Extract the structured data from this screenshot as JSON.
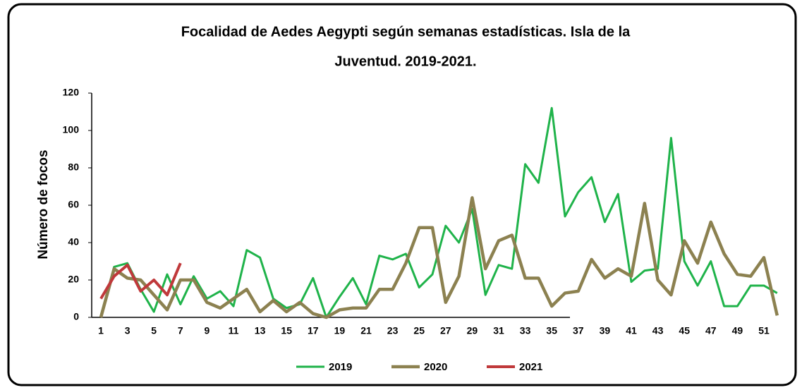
{
  "chart_data": {
    "type": "line",
    "title": [
      "Focalidad de Aedes Aegypti según semanas estadísticas. Isla de la",
      "Juventud. 2019-2021."
    ],
    "ylabel": "Número de focos",
    "categories": [
      "1",
      null,
      "3",
      null,
      "5",
      null,
      "7",
      null,
      "9",
      null,
      "11",
      null,
      "13",
      null,
      "15",
      null,
      "17",
      null,
      "19",
      null,
      "21",
      null,
      "23",
      null,
      "25",
      null,
      "27",
      null,
      "29",
      null,
      "31",
      null,
      "33",
      null,
      "35",
      null,
      "37",
      null,
      "39",
      null,
      "41",
      null,
      "43",
      null,
      "45",
      null,
      "47",
      null,
      "49",
      null,
      "51",
      null
    ],
    "ylim": [
      0,
      120
    ],
    "yticks": [
      0,
      20,
      40,
      60,
      80,
      100,
      120
    ],
    "grid": false,
    "legend": "bottom",
    "series": [
      {
        "name": "2019",
        "color": "#1fb34a",
        "width": 3,
        "values": [
          1,
          27,
          29,
          15,
          3,
          23,
          7,
          22,
          10,
          14,
          6,
          36,
          32,
          10,
          5,
          7,
          21,
          0,
          11,
          21,
          7,
          33,
          31,
          34,
          16,
          23,
          49,
          40,
          58,
          12,
          28,
          26,
          82,
          72,
          112,
          54,
          67,
          75,
          51,
          66,
          19,
          25,
          26,
          96,
          30,
          17,
          30,
          6,
          6,
          17,
          17,
          13
        ]
      },
      {
        "name": "2020",
        "color": "#8c8150",
        "width": 4.5,
        "values": [
          0,
          26,
          21,
          20,
          12,
          4,
          20,
          20,
          8,
          5,
          10,
          15,
          3,
          9,
          3,
          8,
          2,
          0,
          4,
          5,
          5,
          15,
          15,
          29,
          48,
          48,
          8,
          22,
          64,
          26,
          41,
          44,
          21,
          21,
          6,
          13,
          14,
          31,
          21,
          26,
          22,
          61,
          20,
          12,
          41,
          29,
          51,
          34,
          23,
          22,
          32,
          1
        ]
      },
      {
        "name": "2021",
        "color": "#c0393b",
        "width": 4,
        "values": [
          10,
          22,
          28,
          14,
          20,
          12,
          29,
          null,
          null,
          null,
          null,
          null,
          null,
          null,
          null,
          null,
          null,
          null,
          null,
          null,
          null,
          null,
          null,
          null,
          null,
          null,
          null,
          null,
          null,
          null,
          null,
          null,
          null,
          null,
          null,
          null,
          null,
          null,
          null,
          null,
          null,
          null,
          null,
          null,
          null,
          null,
          null,
          null,
          null,
          null,
          null,
          null
        ]
      }
    ]
  }
}
